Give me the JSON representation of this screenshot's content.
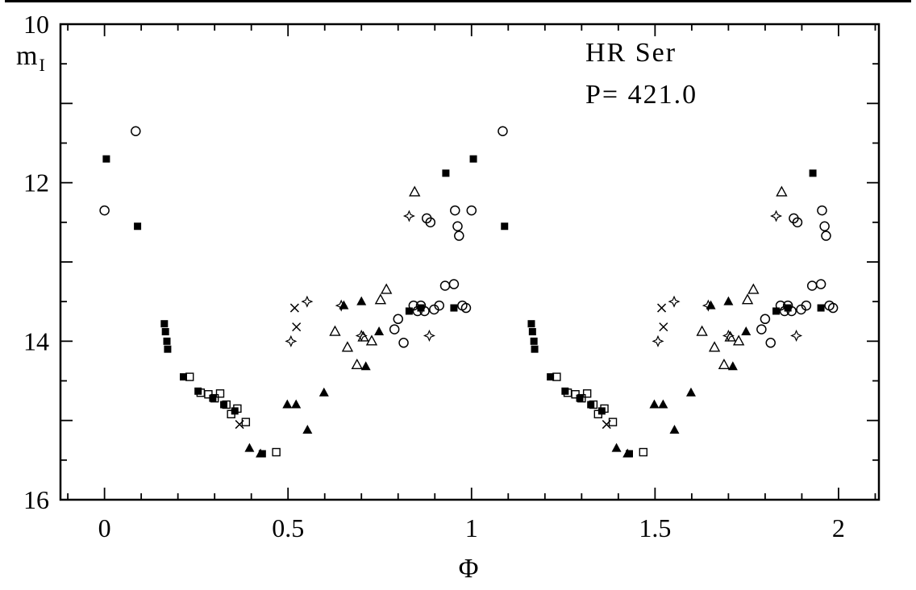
{
  "page": {
    "background": "#ffffff",
    "ink": "#000000"
  },
  "chart_data": {
    "type": "scatter",
    "title": "HR Ser",
    "subtitle": "P= 421.0",
    "xlabel": "Φ",
    "ylabel": "m",
    "ylabel_sub": "I",
    "xlim": [
      -0.12,
      2.11
    ],
    "ylim": [
      10,
      16
    ],
    "y_axis_is_magnitude_inverted": true,
    "x_ticks": [
      {
        "v": 0,
        "label": "0"
      },
      {
        "v": 0.5,
        "label": "0.5"
      },
      {
        "v": 1,
        "label": "1"
      },
      {
        "v": 1.5,
        "label": "1.5"
      },
      {
        "v": 2,
        "label": "2"
      }
    ],
    "x_minor_step": 0.1,
    "y_ticks": [
      {
        "v": 10,
        "label": "10"
      },
      {
        "v": 12,
        "label": "12"
      },
      {
        "v": 14,
        "label": "14"
      },
      {
        "v": 16,
        "label": "16"
      }
    ],
    "y_minor_step": 0.5,
    "duplicate_phase_offset": 1,
    "series": [
      {
        "name": "filled-square",
        "marker": "filled-square",
        "points": [
          [
            0.005,
            11.7
          ],
          [
            0.09,
            12.55
          ],
          [
            0.163,
            13.78
          ],
          [
            0.166,
            13.88
          ],
          [
            0.17,
            14.0
          ],
          [
            0.172,
            14.1
          ],
          [
            0.215,
            14.45
          ],
          [
            0.255,
            14.63
          ],
          [
            0.295,
            14.72
          ],
          [
            0.325,
            14.8
          ],
          [
            0.355,
            14.88
          ],
          [
            0.43,
            15.42
          ],
          [
            0.83,
            13.62
          ],
          [
            0.862,
            13.58
          ],
          [
            0.93,
            11.88
          ],
          [
            0.952,
            13.58
          ]
        ]
      },
      {
        "name": "open-circle",
        "marker": "open-circle",
        "points": [
          [
            0.0,
            12.35
          ],
          [
            0.085,
            11.35
          ],
          [
            0.79,
            13.85
          ],
          [
            0.8,
            13.72
          ],
          [
            0.815,
            14.02
          ],
          [
            0.842,
            13.55
          ],
          [
            0.853,
            13.62
          ],
          [
            0.862,
            13.55
          ],
          [
            0.872,
            13.62
          ],
          [
            0.878,
            12.45
          ],
          [
            0.888,
            12.5
          ],
          [
            0.898,
            13.6
          ],
          [
            0.912,
            13.55
          ],
          [
            0.928,
            13.3
          ],
          [
            0.952,
            13.28
          ],
          [
            0.955,
            12.35
          ],
          [
            0.962,
            12.55
          ],
          [
            0.966,
            12.67
          ],
          [
            0.975,
            13.55
          ],
          [
            0.985,
            13.58
          ]
        ]
      },
      {
        "name": "open-square",
        "marker": "open-square",
        "points": [
          [
            0.232,
            14.45
          ],
          [
            0.262,
            14.65
          ],
          [
            0.283,
            14.67
          ],
          [
            0.3,
            14.72
          ],
          [
            0.315,
            14.66
          ],
          [
            0.332,
            14.8
          ],
          [
            0.345,
            14.92
          ],
          [
            0.362,
            14.85
          ],
          [
            0.385,
            15.02
          ],
          [
            0.468,
            15.4
          ]
        ]
      },
      {
        "name": "filled-triangle",
        "marker": "filled-triangle",
        "points": [
          [
            0.395,
            15.35
          ],
          [
            0.425,
            15.42
          ],
          [
            0.498,
            14.8
          ],
          [
            0.522,
            14.8
          ],
          [
            0.553,
            15.12
          ],
          [
            0.598,
            14.65
          ],
          [
            0.652,
            13.55
          ],
          [
            0.7,
            13.5
          ],
          [
            0.712,
            14.32
          ],
          [
            0.748,
            13.88
          ]
        ]
      },
      {
        "name": "open-triangle",
        "marker": "open-triangle",
        "points": [
          [
            0.628,
            13.88
          ],
          [
            0.662,
            14.08
          ],
          [
            0.688,
            14.3
          ],
          [
            0.705,
            13.95
          ],
          [
            0.728,
            14.0
          ],
          [
            0.752,
            13.48
          ],
          [
            0.768,
            13.35
          ],
          [
            0.845,
            12.12
          ]
        ]
      },
      {
        "name": "cross",
        "marker": "cross",
        "points": [
          [
            0.368,
            15.05
          ],
          [
            0.518,
            13.58
          ],
          [
            0.523,
            13.82
          ]
        ]
      },
      {
        "name": "star",
        "marker": "star",
        "points": [
          [
            0.508,
            14.0
          ],
          [
            0.552,
            13.5
          ],
          [
            0.645,
            13.55
          ],
          [
            0.7,
            13.93
          ],
          [
            0.83,
            12.42
          ],
          [
            0.885,
            13.93
          ]
        ]
      }
    ]
  }
}
